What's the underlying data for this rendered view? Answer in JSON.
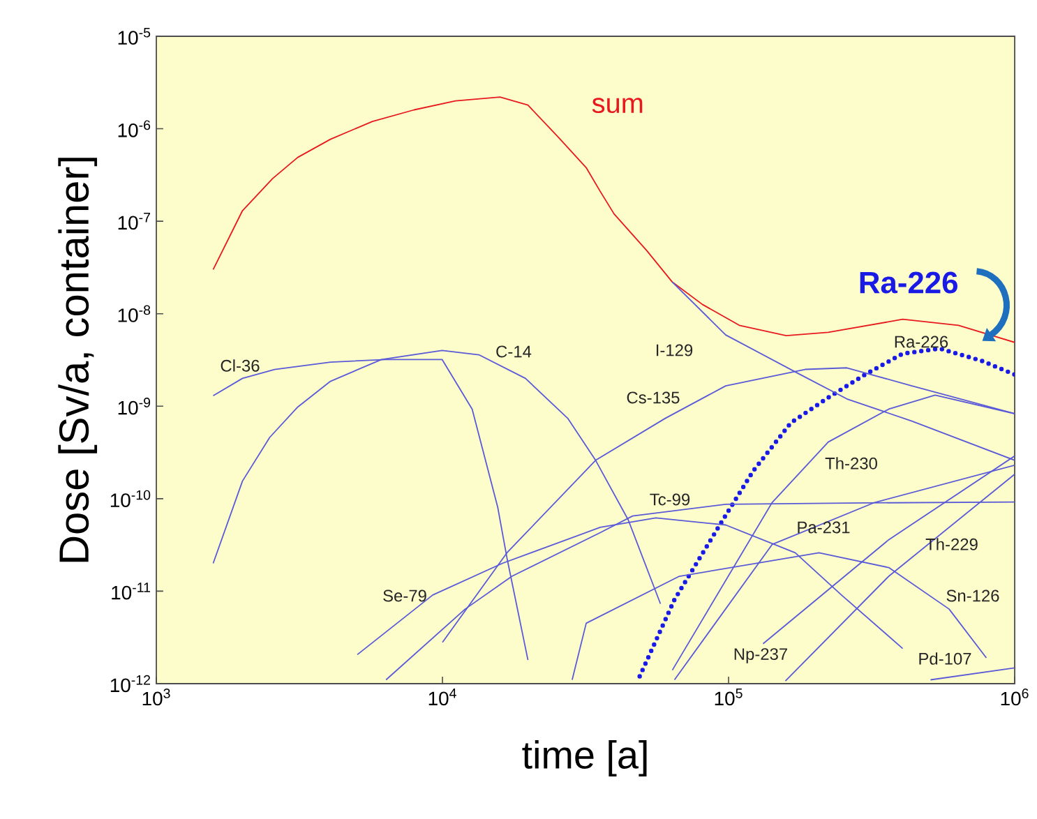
{
  "chart_data": {
    "type": "line",
    "log": "xy",
    "xlabel": "time [a]",
    "ylabel": "Dose [Sv/a, container]",
    "xlim": [
      1000,
      1000000
    ],
    "ylim": [
      1e-12,
      1e-05
    ],
    "xticks": [
      {
        "value": 1000,
        "label": "10$^{3}$"
      },
      {
        "value": 10000,
        "label": "10$^{4}$"
      },
      {
        "value": 100000,
        "label": "10$^{5}$"
      },
      {
        "value": 1000000,
        "label": "10$^{6}$"
      }
    ],
    "yticks": [
      {
        "value": 1e-12,
        "label": "10$^{-12}$"
      },
      {
        "value": 1e-11,
        "label": "10$^{-11}$"
      },
      {
        "value": 1e-10,
        "label": "10$^{-10}$"
      },
      {
        "value": 1e-09,
        "label": "10$^{-9}$"
      },
      {
        "value": 1e-08,
        "label": "10$^{-8}$"
      },
      {
        "value": 1e-07,
        "label": "10$^{-7}$"
      },
      {
        "value": 1e-06,
        "label": "10$^{-6}$"
      },
      {
        "value": 1e-05,
        "label": "10$^{-5}$"
      }
    ],
    "series": [
      {
        "name": "sum",
        "color": "#e8191e",
        "x": [
          1580,
          2000,
          2550,
          3120,
          4060,
          5690,
          7960,
          11100,
          15900,
          19900,
          25400,
          31800,
          35600,
          39800,
          51800,
          63600,
          81000,
          109000,
          159000,
          223000,
          406000,
          636000,
          1000000
        ],
        "values": [
          3e-08,
          1.3e-07,
          2.9e-07,
          4.9e-07,
          7.7e-07,
          1.2e-06,
          1.6e-06,
          2e-06,
          2.2e-06,
          1.8e-06,
          8.1e-07,
          3.8e-07,
          2.1e-07,
          1.2e-07,
          4.8e-08,
          2.2e-08,
          1.26e-08,
          7.5e-09,
          5.8e-09,
          6.3e-09,
          8.7e-09,
          7.5e-09,
          4.9e-09
        ]
      },
      {
        "name": "Ra-226",
        "color": "#1a1ae6",
        "line_style": "dotted",
        "x": [
          48900,
          64700,
          94200,
          122000,
          165000,
          223000,
          300000,
          406000,
          547000,
          766000,
          1000000
        ],
        "values": [
          1.2e-12,
          8.1e-12,
          5.5e-11,
          2e-10,
          6.6e-10,
          1.24e-09,
          2.2e-09,
          3.7e-09,
          4.2e-09,
          3.1e-09,
          2.2e-09
        ]
      },
      {
        "color": "#5a5ad8",
        "x": [
          1580,
          2000,
          2590,
          4060,
          6350,
          9970,
          12700,
          15600,
          16800,
          19900
        ],
        "values": [
          1.3e-09,
          2e-09,
          2.5e-09,
          3e-09,
          3.2e-09,
          3.2e-09,
          9.3e-10,
          8.1e-11,
          2.3e-11,
          1.8e-12
        ]
      },
      {
        "color": "#5a5ad8",
        "x": [
          1580,
          2000,
          2490,
          3120,
          4060,
          6120,
          9970,
          13400,
          19500,
          27400,
          34300,
          44600,
          57800
        ],
        "values": [
          2e-11,
          1.55e-10,
          4.6e-10,
          9.8e-10,
          1.86e-09,
          3.2e-09,
          4e-09,
          3.6e-09,
          2e-09,
          7.4e-10,
          2.6e-10,
          5.9e-11,
          7.3e-12
        ]
      },
      {
        "color": "#5a5ad8",
        "x": [
          63600,
          97700,
          178000,
          259000,
          437000,
          1000000
        ],
        "values": [
          2.2e-08,
          5.9e-09,
          2.2e-09,
          1.2e-09,
          6.9e-10,
          2.6e-10
        ]
      },
      {
        "color": "#5a5ad8",
        "x": [
          10000,
          16800,
          34300,
          60100,
          97700,
          185000,
          259000,
          437000,
          1000000
        ],
        "values": [
          2.8e-12,
          2.6e-11,
          2.6e-10,
          7.4e-10,
          1.66e-09,
          2.5e-09,
          2.6e-09,
          1.66e-09,
          8.3e-10
        ]
      },
      {
        "color": "#5a5ad8",
        "x": [
          5040,
          9250,
          16200,
          35600,
          55700,
          97700,
          171000,
          248000,
          406000
        ],
        "values": [
          2.06e-12,
          9.1e-12,
          2e-11,
          4.9e-11,
          6.2e-11,
          5.2e-11,
          2.6e-11,
          9.1e-12,
          2.4e-12
        ]
      },
      {
        "color": "#5a5ad8",
        "x": [
          6350,
          12000,
          17500,
          35600,
          46200,
          97700,
          300000,
          1000000
        ],
        "values": [
          1.1e-12,
          6.4e-12,
          1.45e-11,
          4.3e-11,
          6.5e-11,
          8.7e-11,
          9e-11,
          9.2e-11
        ]
      },
      {
        "color": "#5a5ad8",
        "x": [
          63600,
          142000,
          223000,
          363000,
          527000,
          1000000
        ],
        "values": [
          1.4e-12,
          9.1e-11,
          4.1e-10,
          9.3e-10,
          1.32e-09,
          8.3e-10
        ]
      },
      {
        "color": "#5a5ad8",
        "x": [
          64700,
          142000,
          324000,
          1000000
        ],
        "values": [
          1.1e-12,
          3.2e-11,
          9.1e-11,
          2.3e-10
        ]
      },
      {
        "color": "#5a5ad8",
        "x": [
          132000,
          363000,
          1000000
        ],
        "values": [
          2.7e-12,
          3.6e-11,
          2.9e-10
        ]
      },
      {
        "color": "#5a5ad8",
        "x": [
          158000,
          363000,
          1000000
        ],
        "values": [
          1.07e-12,
          1.45e-11,
          1.84e-10
        ]
      },
      {
        "color": "#5a5ad8",
        "x": [
          28400,
          31800,
          67300,
          207000,
          363000,
          590000,
          796000
        ],
        "values": [
          1.1e-12,
          4.5e-12,
          1.45e-11,
          2.6e-11,
          1.8e-11,
          6.4e-12,
          1.9e-12
        ]
      },
      {
        "color": "#5a5ad8",
        "x": [
          508000,
          1000000
        ],
        "values": [
          1.1e-12,
          1.48e-12
        ]
      }
    ],
    "annotations": [
      "Cl-36",
      "C-14",
      "I-129",
      "Cs-135",
      "Ra-226",
      "Th-230",
      "Tc-99",
      "Pa-231",
      "Th-229",
      "Se-79",
      "Sn-126",
      "Np-237",
      "Pd-107"
    ]
  }
}
